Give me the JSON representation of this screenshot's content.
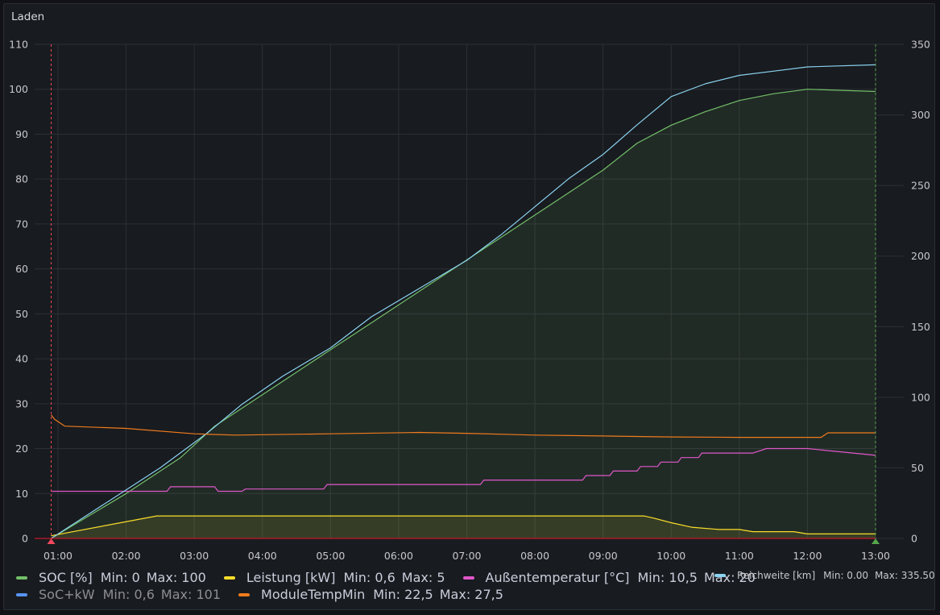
{
  "panel": {
    "title": "Laden"
  },
  "chart_data": {
    "type": "line",
    "x_ticks": [
      "01:00",
      "02:00",
      "03:00",
      "04:00",
      "05:00",
      "06:00",
      "07:00",
      "08:00",
      "09:00",
      "10:00",
      "11:00",
      "12:00",
      "13:00"
    ],
    "x_range": [
      0.9,
      13.0
    ],
    "y_left": {
      "ticks": [
        0,
        10,
        20,
        30,
        40,
        50,
        60,
        70,
        80,
        90,
        100,
        110
      ],
      "range": [
        0,
        110
      ]
    },
    "y_right": {
      "ticks": [
        0,
        50,
        100,
        150,
        200,
        250,
        300,
        350
      ],
      "range": [
        0,
        350
      ]
    },
    "grid": true,
    "legend_position": "bottom",
    "annotations": [
      {
        "x": 0.9,
        "color": "#f2495c",
        "marker": "start"
      },
      {
        "x": 13.0,
        "color": "#56a64b",
        "marker": "end"
      }
    ],
    "series": [
      {
        "name": "SOC [%]",
        "color": "#73bf69",
        "axis": "left",
        "fill": true,
        "stats": "Min: 0  Max: 100",
        "points": [
          [
            0.9,
            0
          ],
          [
            2.0,
            10
          ],
          [
            2.8,
            18
          ],
          [
            3.3,
            25
          ],
          [
            3.6,
            28
          ],
          [
            4.3,
            35
          ],
          [
            5.0,
            42
          ],
          [
            5.6,
            48
          ],
          [
            6.2,
            54
          ],
          [
            6.8,
            60
          ],
          [
            7.5,
            67
          ],
          [
            8.0,
            72
          ],
          [
            8.5,
            77
          ],
          [
            9.0,
            82
          ],
          [
            9.5,
            88
          ],
          [
            10.0,
            92
          ],
          [
            10.5,
            95
          ],
          [
            11.0,
            97.5
          ],
          [
            11.5,
            99
          ],
          [
            12.0,
            100
          ],
          [
            13.0,
            99.5
          ]
        ]
      },
      {
        "name": "Leistung [kW]",
        "color": "#fade2a",
        "axis": "left",
        "fill": true,
        "stats": "Min: 0,6  Max: 5",
        "points": [
          [
            0.9,
            0.6
          ],
          [
            2.45,
            5
          ],
          [
            9.6,
            5
          ],
          [
            9.75,
            4.5
          ],
          [
            10.0,
            3.5
          ],
          [
            10.3,
            2.5
          ],
          [
            10.7,
            2.0
          ],
          [
            11.0,
            2.0
          ],
          [
            11.2,
            1.5
          ],
          [
            11.8,
            1.5
          ],
          [
            12.0,
            1.0
          ],
          [
            13.0,
            1.0
          ]
        ]
      },
      {
        "name": "Außentemperatur [°C]",
        "color": "#e057c9",
        "axis": "left",
        "fill": false,
        "stats": "Min: 10,5  Max: 20",
        "points": [
          [
            0.9,
            10.5
          ],
          [
            2.6,
            10.5
          ],
          [
            2.65,
            11.5
          ],
          [
            3.3,
            11.5
          ],
          [
            3.35,
            10.5
          ],
          [
            3.7,
            10.5
          ],
          [
            3.75,
            11.0
          ],
          [
            4.9,
            11.0
          ],
          [
            4.95,
            12.0
          ],
          [
            7.2,
            12.0
          ],
          [
            7.25,
            13.0
          ],
          [
            8.7,
            13.0
          ],
          [
            8.75,
            14.0
          ],
          [
            9.1,
            14.0
          ],
          [
            9.15,
            15.0
          ],
          [
            9.5,
            15.0
          ],
          [
            9.55,
            16.0
          ],
          [
            9.8,
            16.0
          ],
          [
            9.85,
            17.0
          ],
          [
            10.1,
            17.0
          ],
          [
            10.15,
            18.0
          ],
          [
            10.4,
            18.0
          ],
          [
            10.45,
            19.0
          ],
          [
            11.2,
            19.0
          ],
          [
            11.4,
            20.0
          ],
          [
            12.0,
            20.0
          ],
          [
            13.0,
            18.5
          ]
        ]
      },
      {
        "name": "Reichweite [km]",
        "color": "#8ad2f0",
        "axis": "right",
        "fill": false,
        "stats": "Min: 0.00  Max: 335.50",
        "points": [
          [
            0.9,
            0
          ],
          [
            2.5,
            50
          ],
          [
            3.2,
            75
          ],
          [
            3.7,
            95
          ],
          [
            4.3,
            115
          ],
          [
            5.0,
            135
          ],
          [
            5.6,
            157
          ],
          [
            6.3,
            177
          ],
          [
            7.0,
            197
          ],
          [
            7.5,
            215
          ],
          [
            8.0,
            235
          ],
          [
            8.5,
            255
          ],
          [
            9.0,
            272
          ],
          [
            9.5,
            293
          ],
          [
            10.0,
            313
          ],
          [
            10.5,
            322
          ],
          [
            11.0,
            328
          ],
          [
            11.5,
            331
          ],
          [
            12.0,
            334
          ],
          [
            13.0,
            335.5
          ]
        ]
      },
      {
        "name": "SoC+kW",
        "color": "#5794f2",
        "axis": "left",
        "fill": false,
        "hidden": true,
        "stats": "Min: 0,6  Max: 101",
        "points": []
      },
      {
        "name": "ModuleTempMin",
        "color": "#ef7b1d",
        "axis": "left",
        "fill": false,
        "stats": "Min: 22,5  Max: 27,5",
        "points": [
          [
            0.9,
            27.5
          ],
          [
            0.95,
            26.5
          ],
          [
            1.1,
            25.0
          ],
          [
            2.0,
            24.5
          ],
          [
            3.0,
            23.3
          ],
          [
            3.6,
            23.0
          ],
          [
            5.0,
            23.3
          ],
          [
            6.3,
            23.6
          ],
          [
            7.0,
            23.4
          ],
          [
            8.0,
            23.0
          ],
          [
            9.0,
            22.8
          ],
          [
            10.0,
            22.6
          ],
          [
            11.0,
            22.5
          ],
          [
            12.2,
            22.5
          ],
          [
            12.3,
            23.5
          ],
          [
            13.0,
            23.5
          ]
        ]
      }
    ]
  },
  "legend": {
    "row1": [
      {
        "swatch": "#73bf69",
        "name": "SOC [%]",
        "min": "Min: 0",
        "max": "Max: 100"
      },
      {
        "swatch": "#fade2a",
        "name": "Leistung [kW]",
        "min": "Min: 0,6",
        "max": "Max: 5"
      },
      {
        "swatch": "#e057c9",
        "name": "Außentemperatur [°C]",
        "min": "Min: 10,5",
        "max": "Max: 20"
      }
    ],
    "row1_right": {
      "swatch": "#8ad2f0",
      "name": "Reichweite [km]",
      "min": "Min: 0.00",
      "max": "Max: 335.50"
    },
    "row2": [
      {
        "swatch": "#5794f2",
        "name": "SoC+kW",
        "min": "Min: 0,6",
        "max": "Max: 101",
        "dim": true
      },
      {
        "swatch": "#ef7b1d",
        "name": "ModuleTempMin",
        "min": "Min: 22,5",
        "max": "Max: 27,5"
      }
    ]
  }
}
